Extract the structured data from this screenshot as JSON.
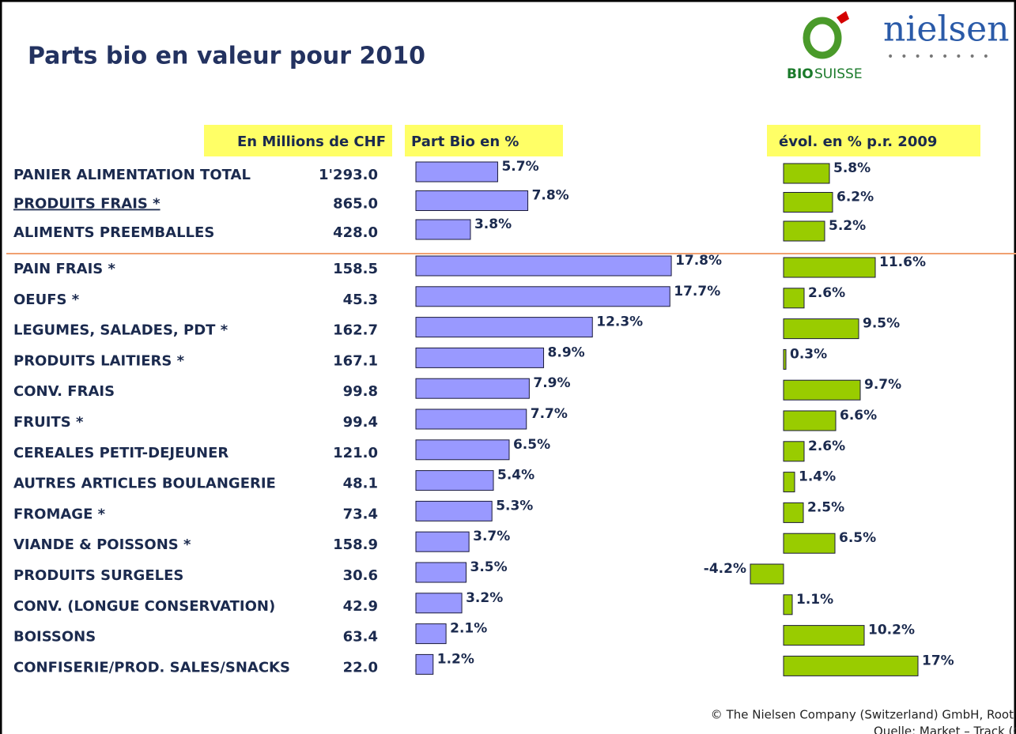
{
  "title": "Parts bio en valeur pour 2010",
  "logos": {
    "biosuisse_bold": "BIO",
    "biosuisse_rest": "SUISSE",
    "nielsen": "nielsen"
  },
  "chart_data": {
    "type": "bar",
    "orientation": "horizontal",
    "categories": [
      "PANIER ALIMENTATION TOTAL",
      "PRODUITS FRAIS *",
      "ALIMENTS PREEMBALLES",
      "PAIN FRAIS *",
      "OEUFS *",
      "LEGUMES, SALADES, PDT *",
      "PRODUITS LAITIERS *",
      "CONV. FRAIS",
      "FRUITS *",
      "CEREALES PETIT-DEJEUNER",
      "AUTRES ARTICLES BOULANGERIE",
      "FROMAGE *",
      "VIANDE & POISSONS *",
      "PRODUITS SURGELES",
      "CONV. (LONGUE CONSERVATION)",
      "BOISSONS",
      "CONFISERIE/PROD. SALES/SNACKS"
    ],
    "columns": {
      "header": "En Millions de CHF",
      "values": [
        1293.0,
        865.0,
        428.0,
        158.5,
        45.3,
        162.7,
        167.1,
        99.8,
        99.4,
        121.0,
        48.1,
        73.4,
        158.9,
        30.6,
        42.9,
        63.4,
        22.0
      ],
      "value_labels": [
        "1'293.0",
        "865.0",
        "428.0",
        "158.5",
        "45.3",
        "162.7",
        "167.1",
        "99.8",
        "99.4",
        "121.0",
        "48.1",
        "73.4",
        "158.9",
        "30.6",
        "42.9",
        "63.4",
        "22.0"
      ]
    },
    "series": [
      {
        "name": "Part Bio en %",
        "color": "#9999ff",
        "values": [
          5.7,
          7.8,
          3.8,
          17.8,
          17.7,
          12.3,
          8.9,
          7.9,
          7.7,
          6.5,
          5.4,
          5.3,
          3.7,
          3.5,
          3.2,
          2.1,
          1.2
        ],
        "value_labels": [
          "5.7%",
          "7.8%",
          "3.8%",
          "17.8%",
          "17.7%",
          "12.3%",
          "8.9%",
          "7.9%",
          "7.7%",
          "6.5%",
          "5.4%",
          "5.3%",
          "3.7%",
          "3.5%",
          "3.2%",
          "2.1%",
          "1.2%"
        ]
      },
      {
        "name": "évol. en % p.r. 2009",
        "color": "#99cc00",
        "values": [
          5.8,
          6.2,
          5.2,
          11.6,
          2.6,
          9.5,
          0.3,
          9.7,
          6.6,
          2.6,
          1.4,
          2.5,
          6.5,
          -4.2,
          1.1,
          10.2,
          17
        ],
        "value_labels": [
          "5.8%",
          "6.2%",
          "5.2%",
          "11.6%",
          "2.6%",
          "9.5%",
          "0.3%",
          "9.7%",
          "6.6%",
          "2.6%",
          "1.4%",
          "2.5%",
          "6.5%",
          "-4.2%",
          "1.1%",
          "10.2%",
          "17%"
        ]
      }
    ]
  },
  "footer": [
    "© The Nielsen Company (Switzerland) GmbH, Root",
    "Quelle: Market – Track (Cube)"
  ]
}
